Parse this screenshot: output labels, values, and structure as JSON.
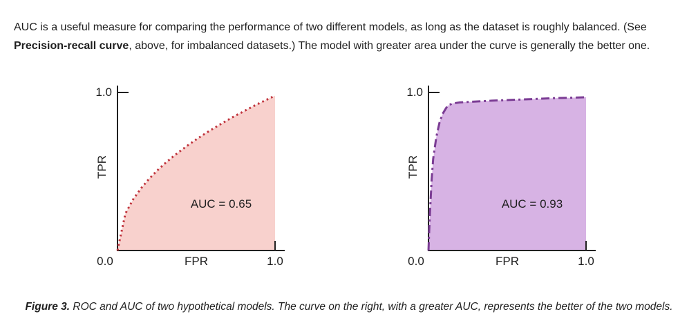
{
  "intro": {
    "text_before_bold": "AUC is a useful measure for comparing the performance of two different models, as long as the dataset is roughly balanced. (See ",
    "bold_text": "Precision-recall curve",
    "text_after_bold": ", above, for imbalanced datasets.) The model with greater area under the curve is generally the better one."
  },
  "caption": {
    "label": "Figure 3.",
    "text": " ROC and AUC of two hypothetical models. The curve on the right, with a greater AUC, represents the better of the two models."
  },
  "colors": {
    "text": "#1f1f1f",
    "axis": "#212121",
    "left_curve": "#c0343d",
    "left_fill": "#f8d1cd",
    "right_curve": "#7b3c94",
    "right_fill": "#d7b3e4"
  },
  "chart_data": [
    {
      "type": "area",
      "title": "",
      "xlabel": "FPR",
      "ylabel": "TPR",
      "xlim": [
        0,
        1
      ],
      "ylim": [
        0,
        1
      ],
      "x_tick_labels": [
        "0.0",
        "1.0"
      ],
      "y_tick_labels": [
        "1.0"
      ],
      "annotation": "AUC = 0.65",
      "line_style": "dotted",
      "line_color": "#c0343d",
      "fill_color": "#f8d1cd",
      "dash_pattern": "2.6 4.4",
      "grid": false,
      "legend": false,
      "points": [
        [
          0.0,
          0.0
        ],
        [
          0.05,
          0.233
        ],
        [
          0.1,
          0.325
        ],
        [
          0.15,
          0.394
        ],
        [
          0.2,
          0.453
        ],
        [
          0.25,
          0.504
        ],
        [
          0.3,
          0.55
        ],
        [
          0.35,
          0.592
        ],
        [
          0.4,
          0.631
        ],
        [
          0.45,
          0.668
        ],
        [
          0.5,
          0.703
        ],
        [
          0.55,
          0.736
        ],
        [
          0.6,
          0.767
        ],
        [
          0.65,
          0.797
        ],
        [
          0.7,
          0.826
        ],
        [
          0.75,
          0.854
        ],
        [
          0.8,
          0.88
        ],
        [
          0.85,
          0.907
        ],
        [
          0.9,
          0.932
        ],
        [
          0.95,
          0.956
        ],
        [
          1.0,
          0.98
        ]
      ]
    },
    {
      "type": "area",
      "title": "",
      "xlabel": "FPR",
      "ylabel": "TPR",
      "xlim": [
        0,
        1
      ],
      "ylim": [
        0,
        1
      ],
      "x_tick_labels": [
        "0.0",
        "1.0"
      ],
      "y_tick_labels": [
        "1.0"
      ],
      "annotation": "AUC = 0.93",
      "line_style": "dash-dot",
      "line_color": "#7b3c94",
      "fill_color": "#d7b3e4",
      "dash_pattern": "12 5 3 5",
      "grid": false,
      "legend": false,
      "points": [
        [
          0.0,
          0.0
        ],
        [
          0.005,
          0.13
        ],
        [
          0.01,
          0.25
        ],
        [
          0.02,
          0.45
        ],
        [
          0.03,
          0.58
        ],
        [
          0.05,
          0.72
        ],
        [
          0.07,
          0.81
        ],
        [
          0.09,
          0.865
        ],
        [
          0.12,
          0.915
        ],
        [
          0.15,
          0.93
        ],
        [
          0.2,
          0.937
        ],
        [
          0.3,
          0.943
        ],
        [
          0.4,
          0.948
        ],
        [
          0.5,
          0.952
        ],
        [
          0.6,
          0.956
        ],
        [
          0.7,
          0.96
        ],
        [
          0.8,
          0.964
        ],
        [
          0.9,
          0.967
        ],
        [
          1.0,
          0.97
        ]
      ]
    }
  ]
}
